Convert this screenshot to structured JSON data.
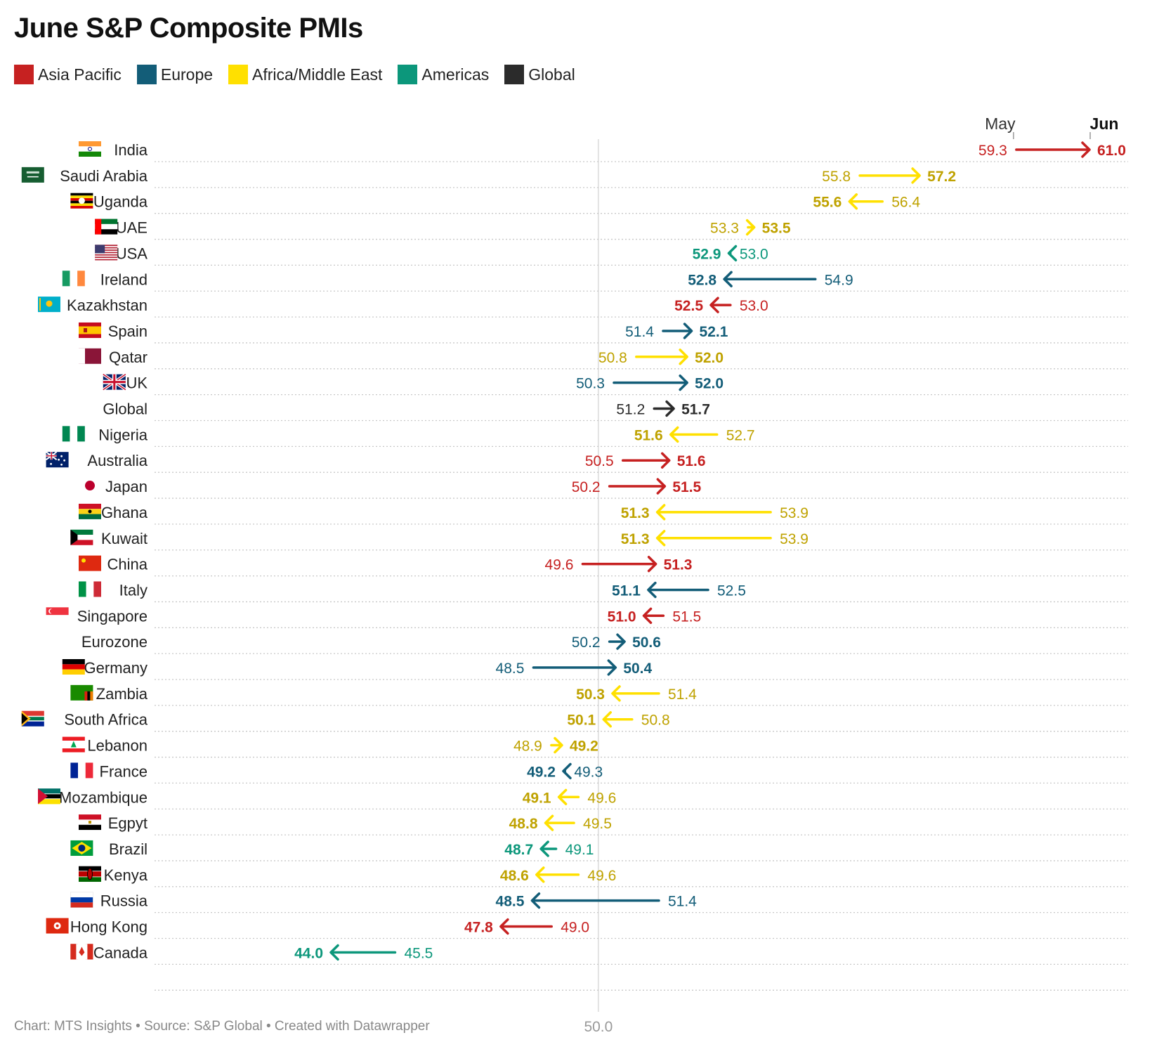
{
  "chart_data": {
    "type": "dot-arrow",
    "title": "June S&P Composite PMIs",
    "legend": [
      {
        "name": "Asia Pacific",
        "color": "#c62121"
      },
      {
        "name": "Europe",
        "color": "#135d78"
      },
      {
        "name": "Africa/Middle East",
        "color": "#ffe000"
      },
      {
        "name": "Americas",
        "color": "#0c977b"
      },
      {
        "name": "Global",
        "color": "#2b2b2b"
      }
    ],
    "header_start": "May",
    "header_end": "Jun",
    "reference_value": 50.0,
    "reference_label": "50.0",
    "x_range": [
      44.0,
      61.0
    ],
    "region_colors": {
      "Asia Pacific": {
        "line": "#c62121",
        "text": "#c62121"
      },
      "Europe": {
        "line": "#135d78",
        "text": "#135d78"
      },
      "Africa/Middle East": {
        "line": "#ffe000",
        "text": "#bfa200"
      },
      "Americas": {
        "line": "#0c977b",
        "text": "#0c977b"
      },
      "Global": {
        "line": "#2b2b2b",
        "text": "#2b2b2b"
      }
    },
    "rows": [
      {
        "country": "India",
        "region": "Asia Pacific",
        "may": 59.3,
        "jun": 61.0,
        "may_label": "59.3",
        "jun_label": "61.0",
        "flag": "india-flag"
      },
      {
        "country": "Saudi Arabia",
        "region": "Africa/Middle East",
        "may": 55.8,
        "jun": 57.2,
        "may_label": "55.8",
        "jun_label": "57.2",
        "flag": "saudi-arabia-flag"
      },
      {
        "country": "Uganda",
        "region": "Africa/Middle East",
        "may": 56.4,
        "jun": 55.6,
        "may_label": "56.4",
        "jun_label": "55.6",
        "flag": "uganda-flag"
      },
      {
        "country": "UAE",
        "region": "Africa/Middle East",
        "may": 53.3,
        "jun": 53.5,
        "may_label": "53.3",
        "jun_label": "53.5",
        "flag": "uae-flag"
      },
      {
        "country": "USA",
        "region": "Americas",
        "may": 53.0,
        "jun": 52.9,
        "may_label": "53.0",
        "jun_label": "52.9",
        "flag": "usa-flag"
      },
      {
        "country": "Ireland",
        "region": "Europe",
        "may": 54.9,
        "jun": 52.8,
        "may_label": "54.9",
        "jun_label": "52.8",
        "flag": "ireland-flag"
      },
      {
        "country": "Kazakhstan",
        "region": "Asia Pacific",
        "may": 53.0,
        "jun": 52.5,
        "may_label": "53.0",
        "jun_label": "52.5",
        "flag": "kazakhstan-flag"
      },
      {
        "country": "Spain",
        "region": "Europe",
        "may": 51.4,
        "jun": 52.1,
        "may_label": "51.4",
        "jun_label": "52.1",
        "flag": "spain-flag"
      },
      {
        "country": "Qatar",
        "region": "Africa/Middle East",
        "may": 50.8,
        "jun": 52.0,
        "may_label": "50.8",
        "jun_label": "52.0",
        "flag": "qatar-flag"
      },
      {
        "country": "UK",
        "region": "Europe",
        "may": 50.3,
        "jun": 52.0,
        "may_label": "50.3",
        "jun_label": "52.0",
        "flag": "uk-flag"
      },
      {
        "country": "Global",
        "region": "Global",
        "may": 51.2,
        "jun": 51.7,
        "may_label": "51.2",
        "jun_label": "51.7",
        "flag": ""
      },
      {
        "country": "Nigeria",
        "region": "Africa/Middle East",
        "may": 52.7,
        "jun": 51.6,
        "may_label": "52.7",
        "jun_label": "51.6",
        "flag": "nigeria-flag"
      },
      {
        "country": "Australia",
        "region": "Asia Pacific",
        "may": 50.5,
        "jun": 51.6,
        "may_label": "50.5",
        "jun_label": "51.6",
        "flag": "australia-flag"
      },
      {
        "country": "Japan",
        "region": "Asia Pacific",
        "may": 50.2,
        "jun": 51.5,
        "may_label": "50.2",
        "jun_label": "51.5",
        "flag": "japan-flag"
      },
      {
        "country": "Ghana",
        "region": "Africa/Middle East",
        "may": 53.9,
        "jun": 51.3,
        "may_label": "53.9",
        "jun_label": "51.3",
        "flag": "ghana-flag"
      },
      {
        "country": "Kuwait",
        "region": "Africa/Middle East",
        "may": 53.9,
        "jun": 51.3,
        "may_label": "53.9",
        "jun_label": "51.3",
        "flag": "kuwait-flag"
      },
      {
        "country": "China",
        "region": "Asia Pacific",
        "may": 49.6,
        "jun": 51.3,
        "may_label": "49.6",
        "jun_label": "51.3",
        "flag": "china-flag"
      },
      {
        "country": "Italy",
        "region": "Europe",
        "may": 52.5,
        "jun": 51.1,
        "may_label": "52.5",
        "jun_label": "51.1",
        "flag": "italy-flag"
      },
      {
        "country": "Singapore",
        "region": "Asia Pacific",
        "may": 51.5,
        "jun": 51.0,
        "may_label": "51.5",
        "jun_label": "51.0",
        "flag": "singapore-flag"
      },
      {
        "country": "Eurozone",
        "region": "Europe",
        "may": 50.2,
        "jun": 50.6,
        "may_label": "50.2",
        "jun_label": "50.6",
        "flag": ""
      },
      {
        "country": "Germany",
        "region": "Europe",
        "may": 48.5,
        "jun": 50.4,
        "may_label": "48.5",
        "jun_label": "50.4",
        "flag": "germany-flag"
      },
      {
        "country": "Zambia",
        "region": "Africa/Middle East",
        "may": 51.4,
        "jun": 50.3,
        "may_label": "51.4",
        "jun_label": "50.3",
        "flag": "zambia-flag"
      },
      {
        "country": "South Africa",
        "region": "Africa/Middle East",
        "may": 50.8,
        "jun": 50.1,
        "may_label": "50.8",
        "jun_label": "50.1",
        "flag": "south-africa-flag"
      },
      {
        "country": "Lebanon",
        "region": "Africa/Middle East",
        "may": 48.9,
        "jun": 49.2,
        "may_label": "48.9",
        "jun_label": "49.2",
        "flag": "lebanon-flag"
      },
      {
        "country": "France",
        "region": "Europe",
        "may": 49.3,
        "jun": 49.2,
        "may_label": "49.3",
        "jun_label": "49.2",
        "flag": "france-flag"
      },
      {
        "country": "Mozambique",
        "region": "Africa/Middle East",
        "may": 49.6,
        "jun": 49.1,
        "may_label": "49.6",
        "jun_label": "49.1",
        "flag": "mozambique-flag"
      },
      {
        "country": "Egpyt",
        "region": "Africa/Middle East",
        "may": 49.5,
        "jun": 48.8,
        "may_label": "49.5",
        "jun_label": "48.8",
        "flag": "egypt-flag"
      },
      {
        "country": "Brazil",
        "region": "Americas",
        "may": 49.1,
        "jun": 48.7,
        "may_label": "49.1",
        "jun_label": "48.7",
        "flag": "brazil-flag"
      },
      {
        "country": "Kenya",
        "region": "Africa/Middle East",
        "may": 49.6,
        "jun": 48.6,
        "may_label": "49.6",
        "jun_label": "48.6",
        "flag": "kenya-flag"
      },
      {
        "country": "Russia",
        "region": "Europe",
        "may": 51.4,
        "jun": 48.5,
        "may_label": "51.4",
        "jun_label": "48.5",
        "flag": "russia-flag"
      },
      {
        "country": "Hong Kong",
        "region": "Asia Pacific",
        "may": 49.0,
        "jun": 47.8,
        "may_label": "49.0",
        "jun_label": "47.8",
        "flag": "hong-kong-flag"
      },
      {
        "country": "Canada",
        "region": "Americas",
        "may": 45.5,
        "jun": 44.0,
        "may_label": "45.5",
        "jun_label": "44.0",
        "flag": "canada-flag"
      }
    ]
  },
  "footer": "Chart: MTS Insights • Source: S&P Global • Created with Datawrapper"
}
